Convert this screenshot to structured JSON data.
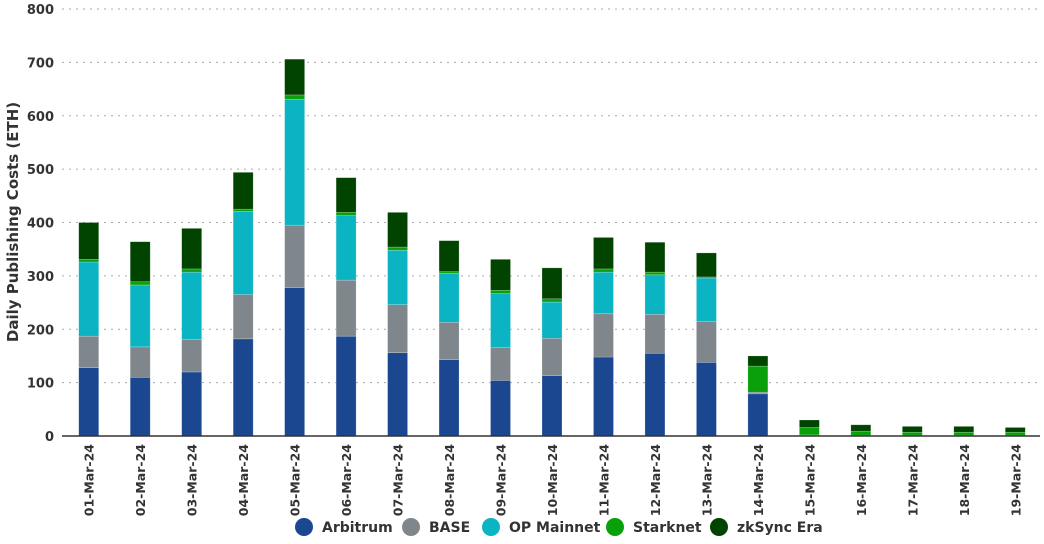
{
  "chart_data": {
    "type": "bar",
    "stacked": true,
    "title": "",
    "xlabel": "",
    "ylabel": "Daily Publishing Costs (ETH)",
    "ylim": [
      0,
      800
    ],
    "yticks": [
      0,
      100,
      200,
      300,
      400,
      500,
      600,
      700,
      800
    ],
    "grid": "horizontal dotted",
    "legend_position": "bottom",
    "categories": [
      "01-Mar-24",
      "02-Mar-24",
      "03-Mar-24",
      "04-Mar-24",
      "05-Mar-24",
      "06-Mar-24",
      "07-Mar-24",
      "08-Mar-24",
      "09-Mar-24",
      "10-Mar-24",
      "11-Mar-24",
      "12-Mar-24",
      "13-Mar-24",
      "14-Mar-24",
      "15-Mar-24",
      "16-Mar-24",
      "17-Mar-24",
      "18-Mar-24",
      "19-Mar-24"
    ],
    "series": [
      {
        "name": "Arbitrum",
        "color": "#1a4790",
        "values": [
          128,
          110,
          120,
          182,
          278,
          187,
          156,
          143,
          104,
          113,
          148,
          155,
          138,
          79,
          0,
          0,
          0,
          0,
          0
        ]
      },
      {
        "name": "BASE",
        "color": "#7f878d",
        "values": [
          59,
          57,
          61,
          83,
          117,
          105,
          90,
          70,
          62,
          70,
          81,
          73,
          77,
          3,
          2,
          1,
          1,
          1,
          1
        ]
      },
      {
        "name": "OP Mainnet",
        "color": "#0bb4c2",
        "values": [
          139,
          116,
          126,
          156,
          236,
          121,
          102,
          92,
          101,
          68,
          78,
          74,
          81,
          0,
          0,
          0,
          0,
          0,
          0
        ]
      },
      {
        "name": "Starknet",
        "color": "#0aa00a",
        "values": [
          5,
          6,
          6,
          4,
          8,
          6,
          6,
          3,
          6,
          6,
          6,
          5,
          2,
          49,
          14,
          8,
          6,
          6,
          6
        ]
      },
      {
        "name": "zkSync Era",
        "color": "#014400",
        "values": [
          69,
          75,
          76,
          69,
          67,
          65,
          65,
          58,
          58,
          58,
          59,
          56,
          45,
          19,
          14,
          12,
          11,
          11,
          9
        ]
      }
    ]
  }
}
